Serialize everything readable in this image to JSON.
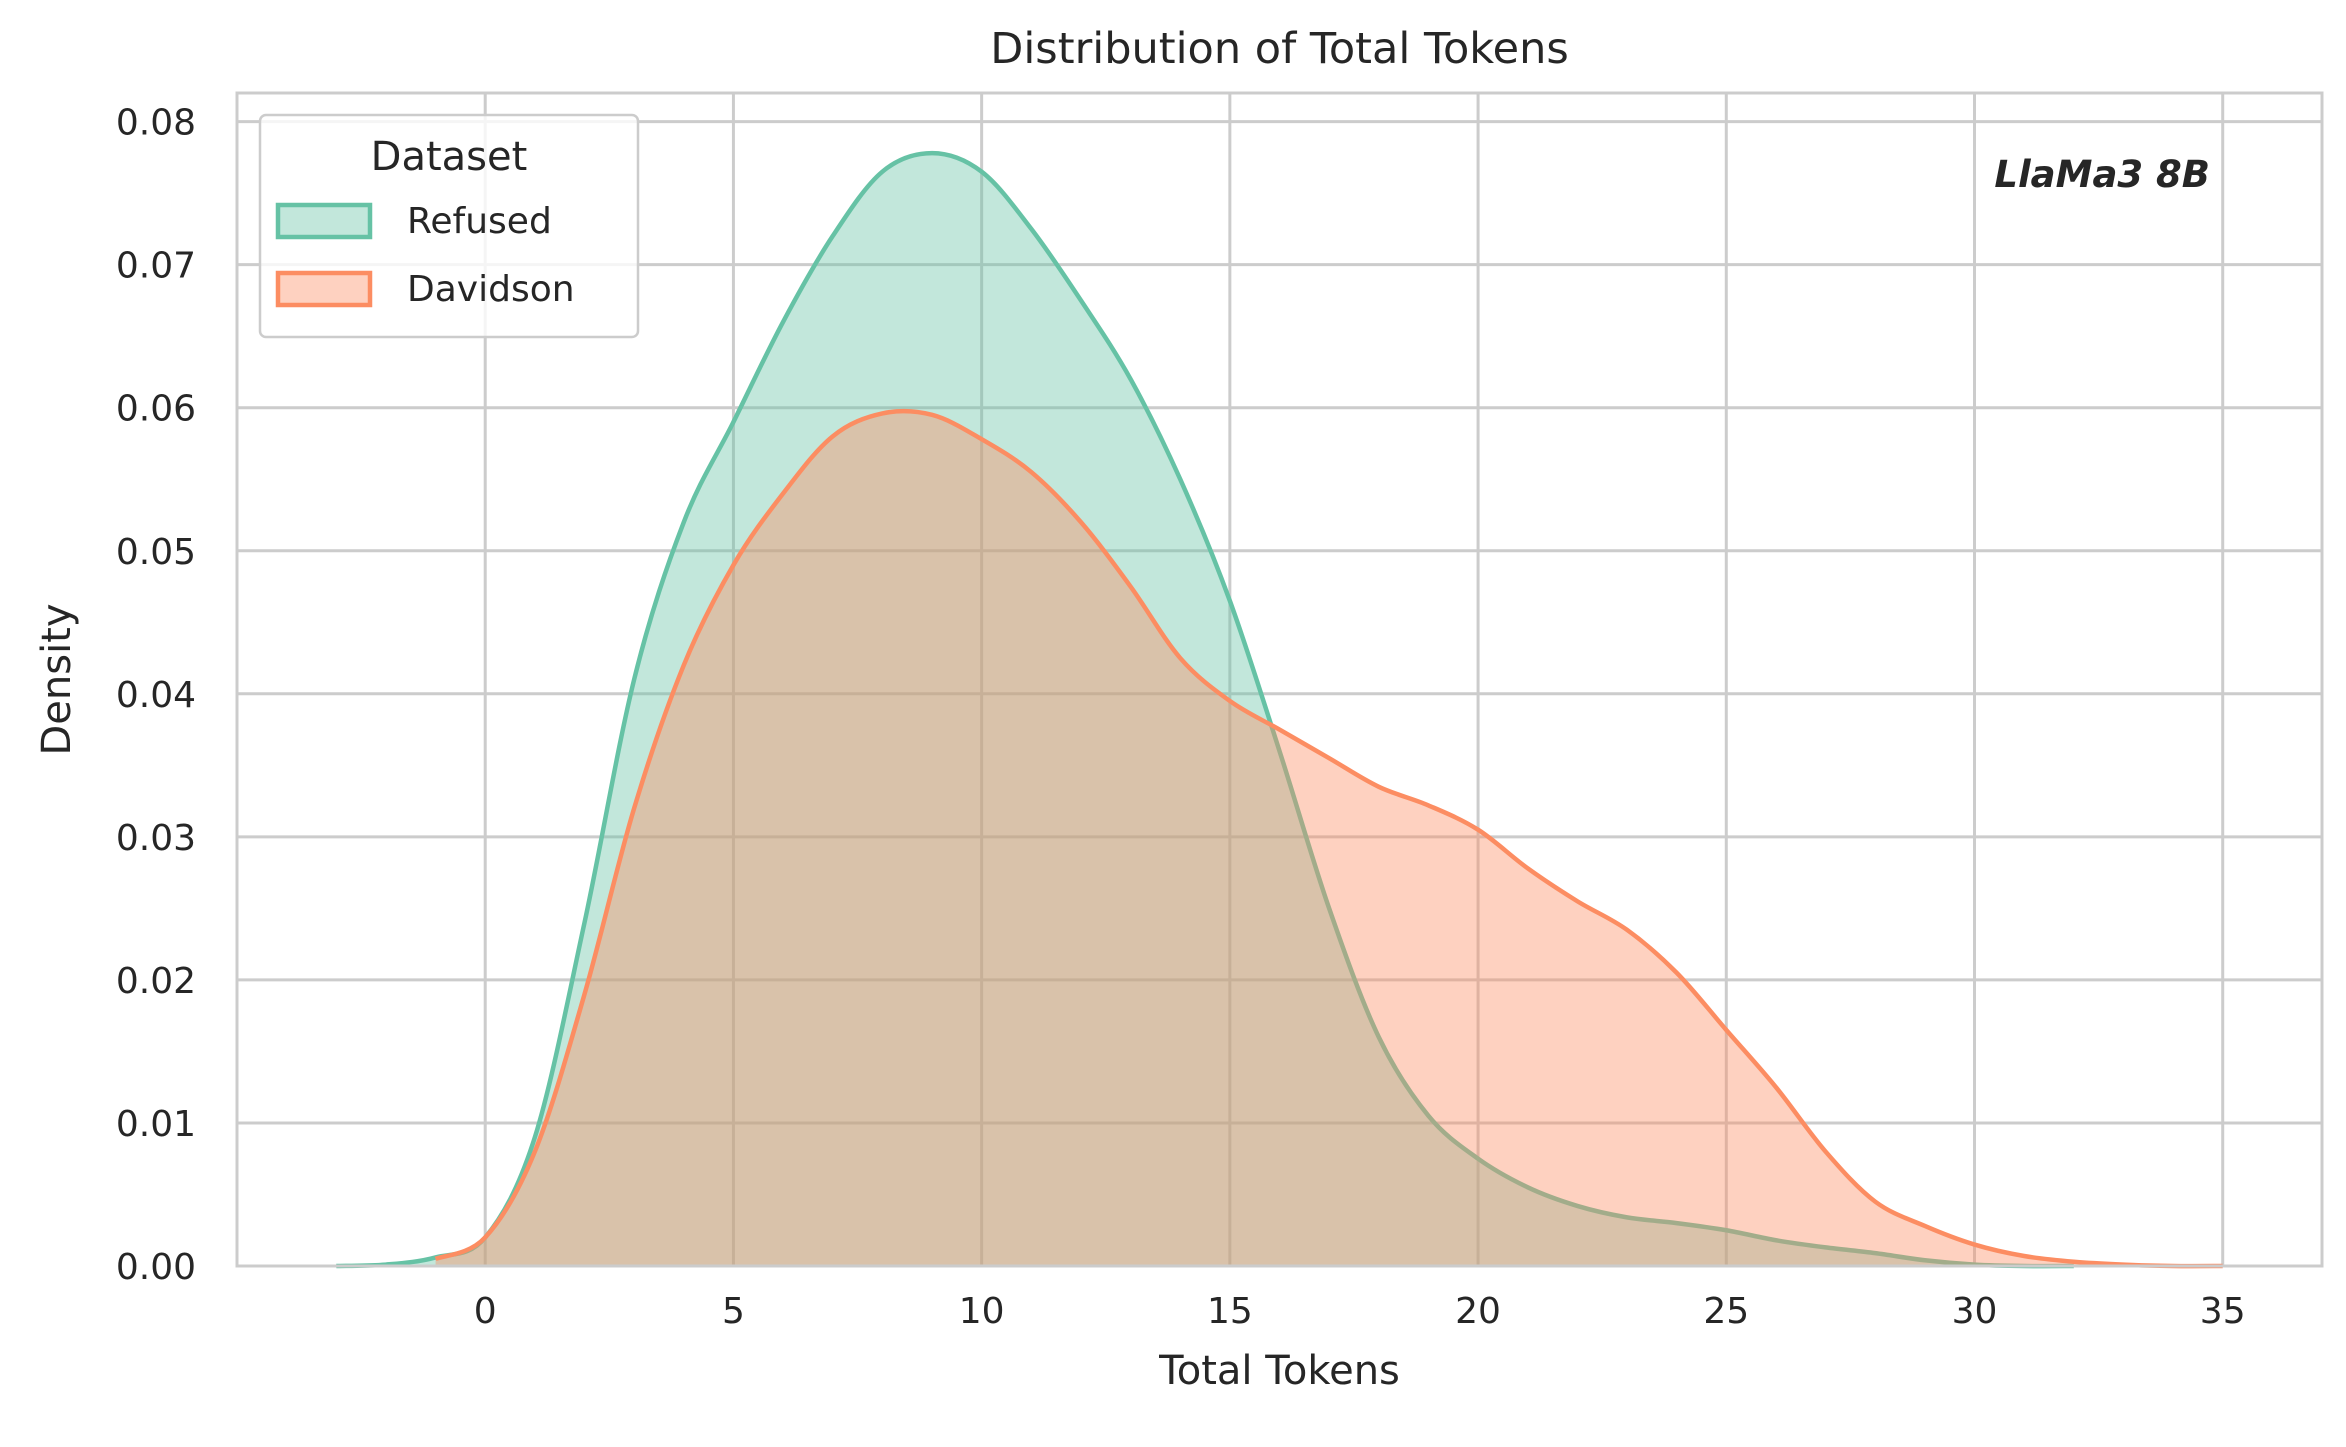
{
  "chart_data": {
    "type": "area",
    "title": "Distribution of Total Tokens",
    "xlabel": "Total Tokens",
    "ylabel": "Density",
    "xlim": [
      -5,
      37
    ],
    "ylim": [
      0,
      0.082
    ],
    "x_ticks": [
      0,
      5,
      10,
      15,
      20,
      25,
      30,
      35
    ],
    "x_tick_labels": [
      "0",
      "5",
      "10",
      "15",
      "20",
      "25",
      "30",
      "35"
    ],
    "y_ticks": [
      0,
      0.01,
      0.02,
      0.03,
      0.04,
      0.05,
      0.06,
      0.07,
      0.08
    ],
    "y_tick_labels": [
      "0.00",
      "0.01",
      "0.02",
      "0.03",
      "0.04",
      "0.05",
      "0.06",
      "0.07",
      "0.08"
    ],
    "grid": true,
    "legend": {
      "title": "Dataset",
      "placement": "top-left",
      "entries": [
        "Refused",
        "Davidson"
      ]
    },
    "annotation": "LlaMa3 8B",
    "series": [
      {
        "name": "Refused",
        "color": "#66c2a5",
        "x": [
          -3,
          -2,
          -1,
          0,
          1,
          2,
          3,
          4,
          5,
          6,
          7,
          8,
          9,
          10,
          11,
          12,
          13,
          14,
          15,
          16,
          17,
          18,
          19,
          20,
          21,
          22,
          23,
          24,
          25,
          26,
          27,
          28,
          29,
          30,
          31,
          32
        ],
        "y": [
          0.0,
          0.0001,
          0.0006,
          0.002,
          0.009,
          0.024,
          0.041,
          0.052,
          0.059,
          0.066,
          0.072,
          0.0765,
          0.0778,
          0.0765,
          0.0725,
          0.0675,
          0.062,
          0.055,
          0.0465,
          0.036,
          0.025,
          0.016,
          0.0105,
          0.0075,
          0.0055,
          0.0042,
          0.0034,
          0.003,
          0.0025,
          0.0018,
          0.0013,
          0.0009,
          0.0004,
          0.0001,
          0.0,
          0.0
        ]
      },
      {
        "name": "Davidson",
        "color": "#fc8d62",
        "x": [
          -1,
          0,
          1,
          2,
          3,
          4,
          5,
          6,
          7,
          8,
          9,
          10,
          11,
          12,
          13,
          14,
          15,
          16,
          17,
          18,
          19,
          20,
          21,
          22,
          23,
          24,
          25,
          26,
          27,
          28,
          29,
          30,
          31,
          32,
          33,
          34,
          35
        ],
        "y": [
          0.0005,
          0.002,
          0.008,
          0.019,
          0.032,
          0.042,
          0.049,
          0.054,
          0.058,
          0.0596,
          0.0595,
          0.0578,
          0.0555,
          0.052,
          0.0475,
          0.0425,
          0.0395,
          0.0375,
          0.0355,
          0.0335,
          0.0322,
          0.0305,
          0.0278,
          0.0255,
          0.0235,
          0.0205,
          0.0165,
          0.0125,
          0.008,
          0.0045,
          0.0028,
          0.0015,
          0.0007,
          0.0003,
          0.0001,
          0.0,
          0.0
        ]
      }
    ]
  }
}
